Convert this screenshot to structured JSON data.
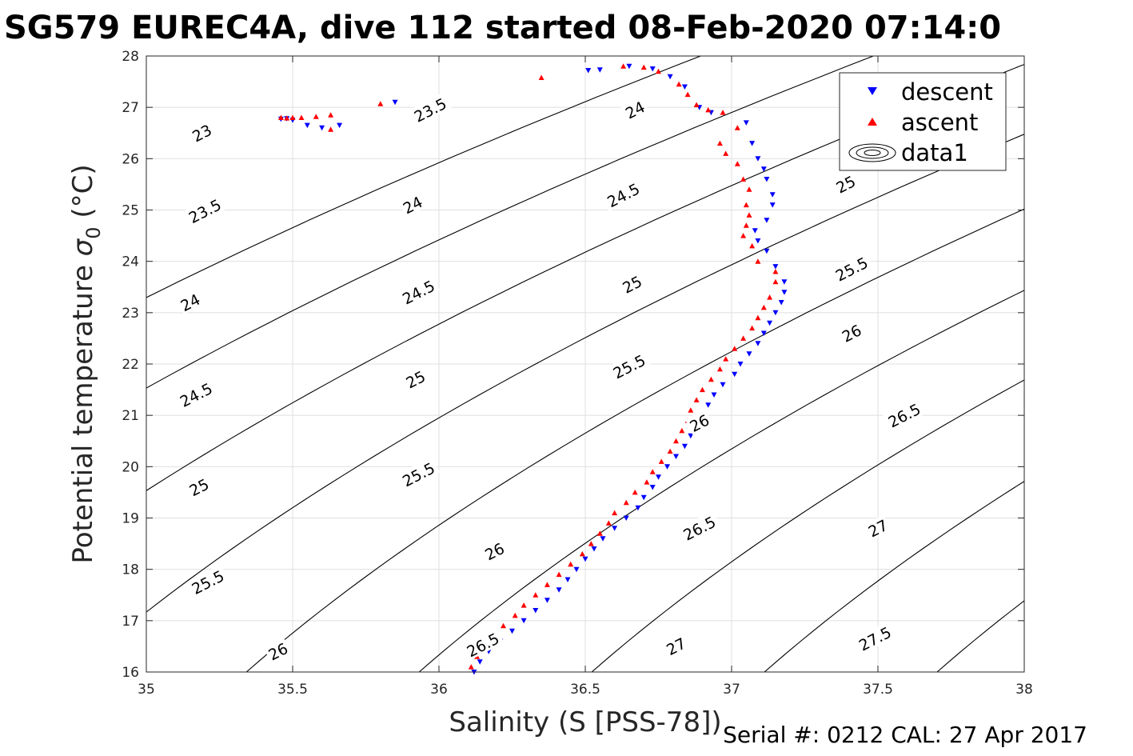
{
  "title": "SG579 EUREC4A, dive 112 started 08-Feb-2020 07:14:0",
  "footer": "Serial #: 0212  CAL: 27 Apr 2017",
  "chart_data": {
    "type": "scatter",
    "xlabel": "Salinity (S [PSS-78])",
    "ylabel": "Potential temperature σ0 (°C)",
    "ylabel_main": "Potential temperature ",
    "ylabel_sigma": "σ",
    "ylabel_sub": "0",
    "ylabel_unit": " (°C)",
    "xlim": [
      35,
      38
    ],
    "ylim": [
      16,
      28
    ],
    "xticks": [
      "35",
      "35.5",
      "36",
      "36.5",
      "37",
      "37.5",
      "38"
    ],
    "yticks": [
      "16",
      "17",
      "18",
      "19",
      "20",
      "21",
      "22",
      "23",
      "24",
      "25",
      "26",
      "27",
      "28"
    ],
    "grid": true,
    "legend_position": "top-right",
    "legend": [
      "descent",
      "ascent",
      "data1"
    ],
    "colors": {
      "descent": "#0000ff",
      "ascent": "#ff0000",
      "contour": "#000000",
      "grid": "#dfdfdf",
      "axis": "#262626"
    },
    "series": [
      {
        "name": "descent",
        "marker": "triangle-down",
        "points": [
          [
            36.12,
            16.0
          ],
          [
            36.14,
            16.2
          ],
          [
            36.17,
            16.4
          ],
          [
            36.21,
            16.6
          ],
          [
            36.25,
            16.8
          ],
          [
            36.29,
            17.0
          ],
          [
            36.33,
            17.2
          ],
          [
            36.37,
            17.4
          ],
          [
            36.41,
            17.6
          ],
          [
            36.44,
            17.8
          ],
          [
            36.47,
            18.0
          ],
          [
            36.5,
            18.2
          ],
          [
            36.53,
            18.4
          ],
          [
            36.56,
            18.6
          ],
          [
            36.6,
            18.8
          ],
          [
            36.64,
            19.0
          ],
          [
            36.68,
            19.2
          ],
          [
            36.7,
            19.4
          ],
          [
            36.73,
            19.6
          ],
          [
            36.75,
            19.8
          ],
          [
            36.78,
            20.0
          ],
          [
            36.81,
            20.2
          ],
          [
            36.84,
            20.4
          ],
          [
            36.86,
            20.6
          ],
          [
            36.88,
            20.8
          ],
          [
            36.9,
            21.0
          ],
          [
            36.92,
            21.2
          ],
          [
            36.94,
            21.4
          ],
          [
            36.97,
            21.6
          ],
          [
            37.01,
            21.8
          ],
          [
            37.03,
            22.0
          ],
          [
            37.06,
            22.2
          ],
          [
            37.09,
            22.4
          ],
          [
            37.11,
            22.6
          ],
          [
            37.13,
            22.8
          ],
          [
            37.15,
            23.0
          ],
          [
            37.17,
            23.2
          ],
          [
            37.18,
            23.4
          ],
          [
            37.18,
            23.6
          ],
          [
            37.15,
            23.9
          ],
          [
            37.12,
            24.2
          ],
          [
            37.09,
            24.4
          ],
          [
            37.08,
            24.6
          ],
          [
            37.12,
            24.8
          ],
          [
            37.14,
            25.1
          ],
          [
            37.14,
            25.3
          ],
          [
            37.12,
            25.6
          ],
          [
            37.11,
            25.8
          ],
          [
            37.09,
            26.0
          ],
          [
            37.07,
            26.3
          ],
          [
            37.05,
            26.7
          ],
          [
            36.93,
            26.9
          ],
          [
            36.89,
            27.0
          ],
          [
            36.84,
            27.4
          ],
          [
            36.79,
            27.6
          ],
          [
            36.73,
            27.75
          ],
          [
            36.65,
            27.8
          ],
          [
            36.55,
            27.73
          ],
          [
            36.51,
            27.72
          ],
          [
            35.85,
            27.1
          ],
          [
            35.66,
            26.65
          ],
          [
            35.6,
            26.6
          ],
          [
            35.55,
            26.65
          ],
          [
            35.5,
            26.75
          ],
          [
            35.48,
            26.78
          ],
          [
            35.46,
            26.77
          ]
        ]
      },
      {
        "name": "ascent",
        "marker": "triangle-up",
        "points": [
          [
            36.11,
            16.1
          ],
          [
            36.13,
            16.3
          ],
          [
            36.15,
            16.5
          ],
          [
            36.19,
            16.7
          ],
          [
            36.22,
            16.9
          ],
          [
            36.26,
            17.1
          ],
          [
            36.29,
            17.3
          ],
          [
            36.33,
            17.5
          ],
          [
            36.37,
            17.7
          ],
          [
            36.41,
            17.9
          ],
          [
            36.45,
            18.1
          ],
          [
            36.49,
            18.3
          ],
          [
            36.52,
            18.5
          ],
          [
            36.55,
            18.7
          ],
          [
            36.58,
            18.9
          ],
          [
            36.6,
            19.1
          ],
          [
            36.64,
            19.3
          ],
          [
            36.67,
            19.5
          ],
          [
            36.71,
            19.7
          ],
          [
            36.73,
            19.9
          ],
          [
            36.76,
            20.1
          ],
          [
            36.79,
            20.3
          ],
          [
            36.81,
            20.5
          ],
          [
            36.83,
            20.7
          ],
          [
            36.85,
            20.9
          ],
          [
            36.86,
            21.1
          ],
          [
            36.88,
            21.3
          ],
          [
            36.9,
            21.5
          ],
          [
            36.93,
            21.7
          ],
          [
            36.96,
            21.9
          ],
          [
            36.98,
            22.1
          ],
          [
            37.01,
            22.3
          ],
          [
            37.04,
            22.5
          ],
          [
            37.07,
            22.7
          ],
          [
            37.09,
            22.9
          ],
          [
            37.11,
            23.1
          ],
          [
            37.13,
            23.3
          ],
          [
            37.15,
            23.6
          ],
          [
            37.15,
            23.8
          ],
          [
            37.09,
            24.0
          ],
          [
            37.07,
            24.3
          ],
          [
            37.04,
            24.5
          ],
          [
            37.05,
            24.7
          ],
          [
            37.06,
            24.9
          ],
          [
            37.05,
            25.1
          ],
          [
            37.06,
            25.4
          ],
          [
            37.04,
            25.6
          ],
          [
            37.02,
            25.9
          ],
          [
            36.98,
            26.1
          ],
          [
            36.96,
            26.3
          ],
          [
            37.02,
            26.6
          ],
          [
            36.97,
            26.9
          ],
          [
            36.92,
            26.95
          ],
          [
            36.88,
            27.05
          ],
          [
            36.85,
            27.25
          ],
          [
            36.82,
            27.45
          ],
          [
            36.75,
            27.7
          ],
          [
            36.7,
            27.78
          ],
          [
            36.63,
            27.8
          ],
          [
            36.35,
            27.58
          ],
          [
            35.8,
            27.07
          ],
          [
            35.63,
            26.85
          ],
          [
            35.58,
            26.82
          ],
          [
            35.53,
            26.8
          ],
          [
            35.5,
            26.8
          ],
          [
            35.48,
            26.79
          ],
          [
            35.46,
            26.8
          ],
          [
            35.63,
            26.57
          ]
        ]
      }
    ],
    "contours": [
      {
        "level": "23"
      },
      {
        "level": "23.5"
      },
      {
        "level": "24"
      },
      {
        "level": "24.5"
      },
      {
        "level": "25"
      },
      {
        "level": "25.5"
      },
      {
        "level": "26"
      },
      {
        "level": "26.5"
      },
      {
        "level": "27"
      },
      {
        "level": "27.5"
      }
    ],
    "contour_labels": [
      {
        "text": "23",
        "x": 35.19,
        "y": 26.5
      },
      {
        "text": "23.5",
        "x": 35.97,
        "y": 26.95
      },
      {
        "text": "24",
        "x": 36.67,
        "y": 26.95
      },
      {
        "text": "23.5",
        "x": 35.2,
        "y": 24.98
      },
      {
        "text": "24",
        "x": 35.91,
        "y": 25.1
      },
      {
        "text": "24.5",
        "x": 36.63,
        "y": 25.29
      },
      {
        "text": "25",
        "x": 37.39,
        "y": 25.5
      },
      {
        "text": "24",
        "x": 35.15,
        "y": 23.2
      },
      {
        "text": "24.5",
        "x": 35.93,
        "y": 23.4
      },
      {
        "text": "25",
        "x": 36.66,
        "y": 23.55
      },
      {
        "text": "25.5",
        "x": 37.41,
        "y": 23.85
      },
      {
        "text": "24.5",
        "x": 35.17,
        "y": 21.4
      },
      {
        "text": "25",
        "x": 35.92,
        "y": 21.7
      },
      {
        "text": "25.5",
        "x": 36.65,
        "y": 21.95
      },
      {
        "text": "26",
        "x": 37.41,
        "y": 22.6
      },
      {
        "text": "25",
        "x": 35.18,
        "y": 19.6
      },
      {
        "text": "25.5",
        "x": 35.93,
        "y": 19.85
      },
      {
        "text": "26",
        "x": 36.89,
        "y": 20.85
      },
      {
        "text": "26.5",
        "x": 37.59,
        "y": 21.0
      },
      {
        "text": "25.5",
        "x": 35.21,
        "y": 17.75
      },
      {
        "text": "26",
        "x": 36.19,
        "y": 18.35
      },
      {
        "text": "26.5",
        "x": 36.89,
        "y": 18.8
      },
      {
        "text": "27",
        "x": 37.5,
        "y": 18.8
      },
      {
        "text": "26",
        "x": 35.45,
        "y": 16.4
      },
      {
        "text": "26.5",
        "x": 36.15,
        "y": 16.53
      },
      {
        "text": "27",
        "x": 36.81,
        "y": 16.5
      },
      {
        "text": "27.5",
        "x": 37.49,
        "y": 16.65
      }
    ]
  }
}
